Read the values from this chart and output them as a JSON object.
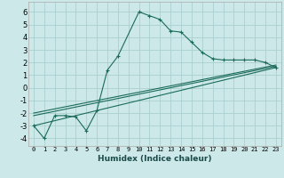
{
  "xlabel": "Humidex (Indice chaleur)",
  "background_color": "#cde8e8",
  "grid_color": "#aacfcf",
  "line_color": "#1a6b5a",
  "xlim": [
    -0.5,
    23.5
  ],
  "ylim": [
    -4.6,
    6.8
  ],
  "xticks": [
    0,
    1,
    2,
    3,
    4,
    5,
    6,
    7,
    8,
    9,
    10,
    11,
    12,
    13,
    14,
    15,
    16,
    17,
    18,
    19,
    20,
    21,
    22,
    23
  ],
  "yticks": [
    -4,
    -3,
    -2,
    -1,
    0,
    1,
    2,
    3,
    4,
    5,
    6
  ],
  "series1_x": [
    0,
    1,
    2,
    3,
    4,
    5,
    6,
    7,
    8,
    10,
    11,
    12,
    13,
    14,
    15,
    16,
    17,
    18,
    19,
    20,
    21,
    22,
    23
  ],
  "series1_y": [
    -3.0,
    -4.0,
    -2.2,
    -2.2,
    -2.3,
    -3.4,
    -1.8,
    1.4,
    2.5,
    6.0,
    5.7,
    5.4,
    4.5,
    4.4,
    3.6,
    2.8,
    2.3,
    2.2,
    2.2,
    2.2,
    2.2,
    2.0,
    1.6
  ],
  "series2_x": [
    0,
    23
  ],
  "series2_y": [
    -3.0,
    1.6
  ],
  "series3_x": [
    0,
    23
  ],
  "series3_y": [
    -2.2,
    1.7
  ],
  "series4_x": [
    0,
    23
  ],
  "series4_y": [
    -2.0,
    1.8
  ]
}
